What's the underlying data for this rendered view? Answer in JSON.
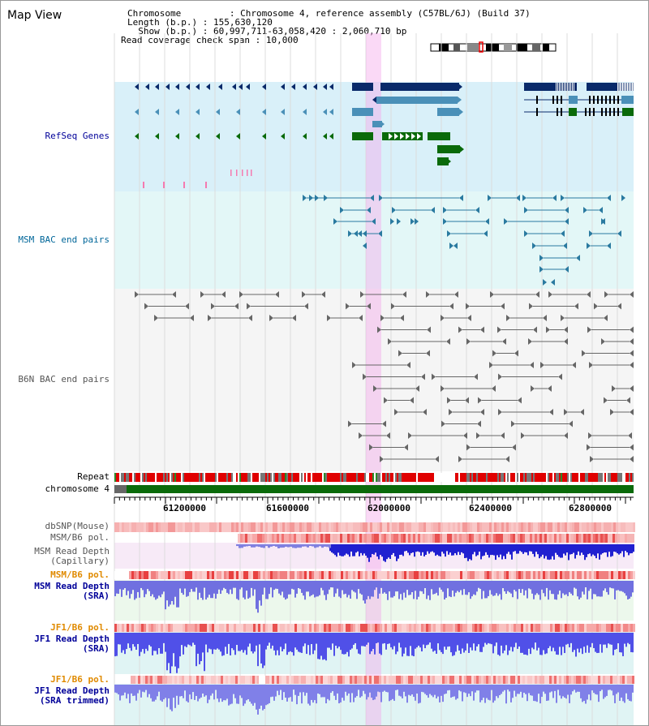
{
  "header": {
    "view_title": "Map View",
    "lines": [
      {
        "label": "Chromosome         ",
        "value": "Chromosome 4, reference assembly (C57BL/6J) (Build 37)"
      },
      {
        "label": "Length (b.p.) ",
        "value": "155,630,120"
      },
      {
        "label": "  Show (b.p.) ",
        "value": "60,997,711-63,058,420 : 2,060,710 bp"
      },
      {
        "label": "Read coverage check span",
        "value": "10,000"
      }
    ]
  },
  "tracks": {
    "refseq": "RefSeq Genes",
    "msm_bac": "MSM BAC end pairs",
    "b6n_bac": "B6N BAC end pairs",
    "repeat": "Repeat",
    "chromosome": "chromosome 4",
    "dbsnp": "dbSNP(Mouse)",
    "msm_b6_pol": "MSM/B6 pol.",
    "msm_depth_cap_1": "MSM Read Depth",
    "msm_depth_cap_2": "(Capillary)",
    "msm_b6_pol2": "MSM/B6 pol.",
    "msm_depth_sra_1": "MSM Read Depth",
    "msm_depth_sra_2": "(SRA)",
    "jf1_b6_pol": "JF1/B6 pol.",
    "jf1_depth_sra_1": "JF1 Read Depth",
    "jf1_depth_sra_2": "(SRA)",
    "jf1_b6_pol2": "JF1/B6 pol.",
    "jf1_depth_trim_1": "JF1 Read Depth",
    "jf1_depth_trim_2": "(SRA trimmed)"
  },
  "axis": {
    "ticks": [
      "61200000",
      "61600000",
      "62000000",
      "62400000",
      "62800000"
    ]
  },
  "colors": {
    "refseq_label": "#000099",
    "msm_label": "#006699",
    "gray_label": "#555555",
    "orange_label": "#e08a00",
    "blue_label": "#000099",
    "highlight": "#f5c6ee"
  }
}
